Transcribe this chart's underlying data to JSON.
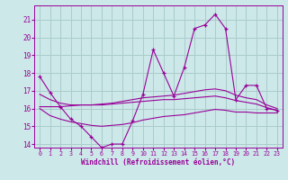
{
  "title": "",
  "xlabel": "Windchill (Refroidissement éolien,°C)",
  "background_color": "#cce8e8",
  "grid_color": "#aacccc",
  "line_color": "#990099",
  "x_values": [
    0,
    1,
    2,
    3,
    4,
    5,
    6,
    7,
    8,
    9,
    10,
    11,
    12,
    13,
    14,
    15,
    16,
    17,
    18,
    19,
    20,
    21,
    22,
    23
  ],
  "main_line": [
    17.8,
    16.9,
    16.1,
    15.4,
    15.0,
    14.4,
    13.8,
    14.0,
    14.0,
    15.3,
    16.8,
    19.3,
    18.0,
    16.7,
    18.3,
    20.5,
    20.7,
    21.3,
    20.5,
    16.5,
    17.3,
    17.3,
    16.0,
    15.9
  ],
  "smooth_upper": [
    16.8,
    16.5,
    16.3,
    16.2,
    16.2,
    16.2,
    16.25,
    16.3,
    16.4,
    16.5,
    16.6,
    16.65,
    16.7,
    16.75,
    16.85,
    16.95,
    17.05,
    17.1,
    17.0,
    16.75,
    16.6,
    16.5,
    16.2,
    16.0
  ],
  "smooth_mid": [
    16.1,
    16.1,
    16.1,
    16.15,
    16.2,
    16.2,
    16.2,
    16.25,
    16.3,
    16.35,
    16.4,
    16.45,
    16.5,
    16.5,
    16.55,
    16.6,
    16.65,
    16.7,
    16.6,
    16.45,
    16.35,
    16.25,
    16.05,
    15.9
  ],
  "smooth_lower": [
    16.0,
    15.6,
    15.4,
    15.25,
    15.15,
    15.05,
    15.0,
    15.05,
    15.1,
    15.2,
    15.35,
    15.45,
    15.55,
    15.6,
    15.65,
    15.75,
    15.85,
    15.95,
    15.9,
    15.8,
    15.8,
    15.75,
    15.75,
    15.75
  ],
  "ylim": [
    13.8,
    21.8
  ],
  "xlim": [
    -0.5,
    23.5
  ],
  "yticks": [
    14,
    15,
    16,
    17,
    18,
    19,
    20,
    21
  ],
  "xticks": [
    0,
    1,
    2,
    3,
    4,
    5,
    6,
    7,
    8,
    9,
    10,
    11,
    12,
    13,
    14,
    15,
    16,
    17,
    18,
    19,
    20,
    21,
    22,
    23
  ]
}
